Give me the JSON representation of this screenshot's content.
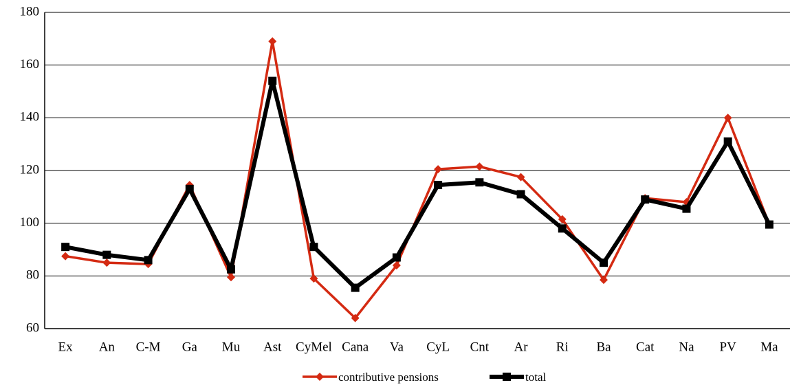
{
  "chart_data": {
    "type": "line",
    "categories": [
      "Ex",
      "An",
      "C-M",
      "Ga",
      "Mu",
      "Ast",
      "CyMel",
      "Cana",
      "Va",
      "CyL",
      "Cnt",
      "Ar",
      "Ri",
      "Ba",
      "Cat",
      "Na",
      "PV",
      "Ma"
    ],
    "series": [
      {
        "name": "contributive pensions",
        "color": "#d42a12",
        "marker": "diamond",
        "values": [
          87.5,
          85,
          84.5,
          114.5,
          79.5,
          169,
          79,
          64,
          84,
          120.5,
          121.5,
          117.5,
          101.5,
          78.5,
          109.5,
          108,
          140,
          99.5
        ]
      },
      {
        "name": "total",
        "color": "#000000",
        "marker": "square",
        "values": [
          91,
          88,
          86,
          113,
          82.5,
          154,
          91,
          75.5,
          87,
          114.5,
          115.5,
          111,
          98,
          85,
          109,
          105.5,
          131,
          99.5
        ]
      }
    ],
    "ylim": [
      60,
      180
    ],
    "yticks": [
      60,
      80,
      100,
      120,
      140,
      160,
      180
    ],
    "grid": true,
    "legend": "bottom"
  }
}
